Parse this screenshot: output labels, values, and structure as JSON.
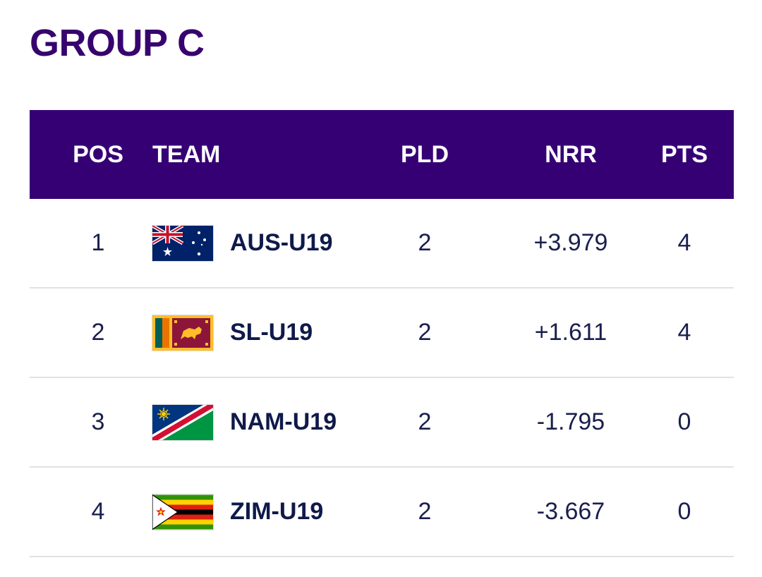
{
  "group": {
    "title": "GROUP C"
  },
  "table": {
    "headers": {
      "pos": "POS",
      "team": "TEAM",
      "pld": "PLD",
      "nrr": "NRR",
      "pts": "PTS"
    },
    "rows": [
      {
        "pos": "1",
        "team": "AUS-U19",
        "flag": "australia-flag-icon",
        "pld": "2",
        "nrr": "+3.979",
        "pts": "4"
      },
      {
        "pos": "2",
        "team": "SL-U19",
        "flag": "sri-lanka-flag-icon",
        "pld": "2",
        "nrr": "+1.611",
        "pts": "4"
      },
      {
        "pos": "3",
        "team": "NAM-U19",
        "flag": "namibia-flag-icon",
        "pld": "2",
        "nrr": "-1.795",
        "pts": "0"
      },
      {
        "pos": "4",
        "team": "ZIM-U19",
        "flag": "zimbabwe-flag-icon",
        "pld": "2",
        "nrr": "-3.667",
        "pts": "0"
      }
    ]
  },
  "colors": {
    "brand_purple": "#360075",
    "title_purple": "#37036e",
    "text_navy": "#1a1f4e",
    "row_divider": "#e2e2e2"
  }
}
